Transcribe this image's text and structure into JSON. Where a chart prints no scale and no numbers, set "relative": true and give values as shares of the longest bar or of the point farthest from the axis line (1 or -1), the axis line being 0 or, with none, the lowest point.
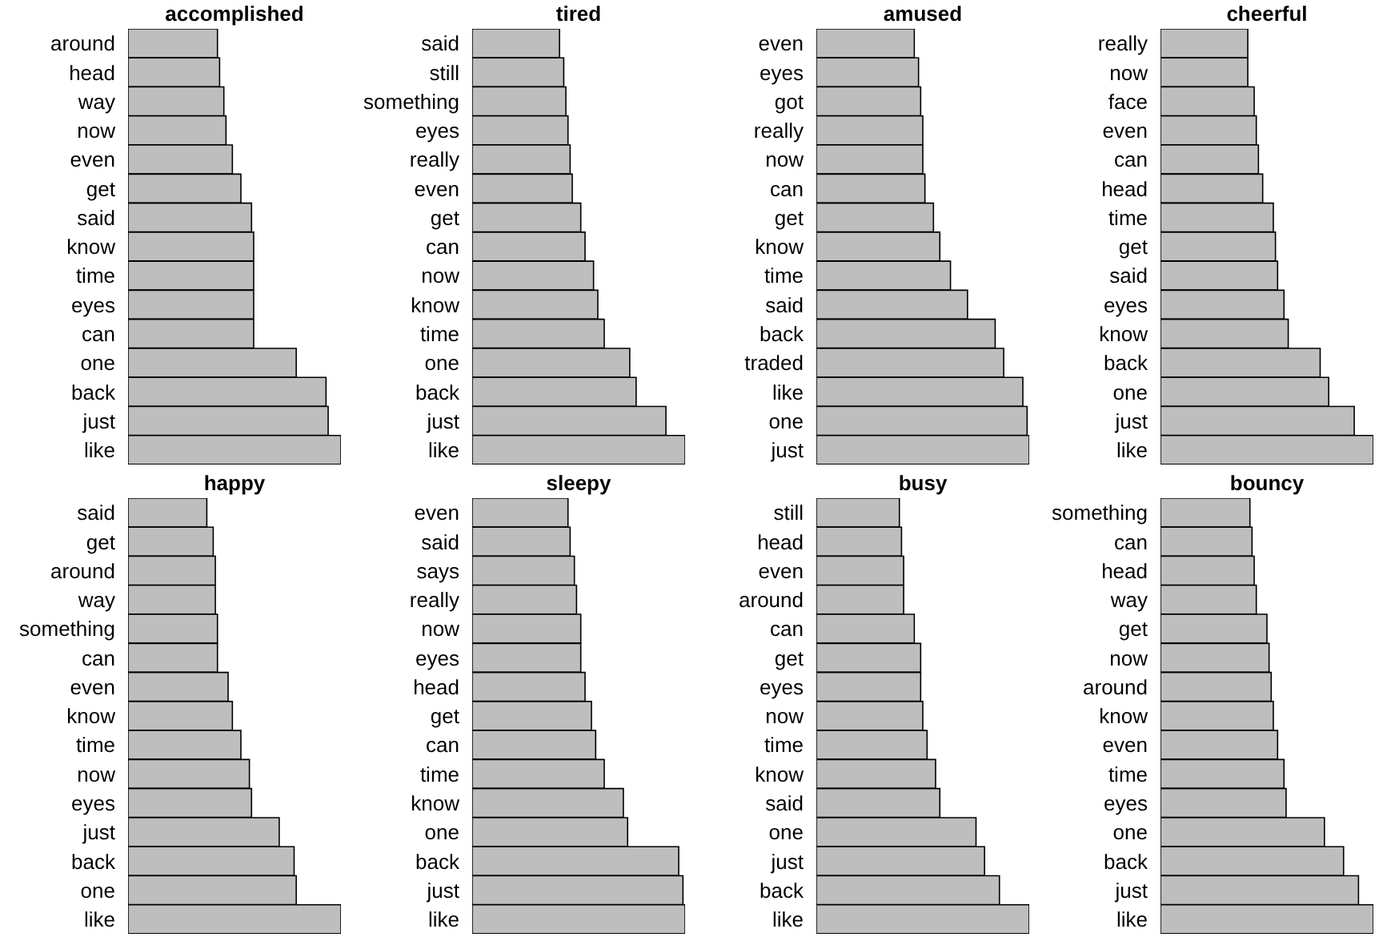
{
  "chart_data": [
    {
      "type": "bar",
      "orientation": "horizontal",
      "relative": true,
      "title": "accomplished",
      "color": "#bebebe",
      "categories": [
        "around",
        "head",
        "way",
        "now",
        "even",
        "get",
        "said",
        "know",
        "time",
        "eyes",
        "can",
        "one",
        "back",
        "just",
        "like"
      ],
      "values": [
        0.42,
        0.43,
        0.45,
        0.46,
        0.49,
        0.53,
        0.58,
        0.59,
        0.59,
        0.59,
        0.59,
        0.79,
        0.93,
        0.94,
        1
      ]
    },
    {
      "type": "bar",
      "orientation": "horizontal",
      "relative": true,
      "title": "tired",
      "color": "#bebebe",
      "categories": [
        "said",
        "still",
        "something",
        "eyes",
        "really",
        "even",
        "get",
        "can",
        "now",
        "know",
        "time",
        "one",
        "back",
        "just",
        "like"
      ],
      "values": [
        0.41,
        0.43,
        0.44,
        0.45,
        0.46,
        0.47,
        0.51,
        0.53,
        0.57,
        0.59,
        0.62,
        0.74,
        0.77,
        0.91,
        1
      ]
    },
    {
      "type": "bar",
      "orientation": "horizontal",
      "relative": true,
      "title": "amused",
      "color": "#bebebe",
      "categories": [
        "even",
        "eyes",
        "got",
        "really",
        "now",
        "can",
        "get",
        "know",
        "time",
        "said",
        "back",
        "traded",
        "like",
        "one",
        "just"
      ],
      "values": [
        0.46,
        0.48,
        0.49,
        0.5,
        0.5,
        0.51,
        0.55,
        0.58,
        0.63,
        0.71,
        0.84,
        0.88,
        0.97,
        0.99,
        1
      ]
    },
    {
      "type": "bar",
      "orientation": "horizontal",
      "relative": true,
      "title": "cheerful",
      "color": "#bebebe",
      "categories": [
        "really",
        "now",
        "face",
        "even",
        "can",
        "head",
        "time",
        "get",
        "said",
        "eyes",
        "know",
        "back",
        "one",
        "just",
        "like"
      ],
      "values": [
        0.41,
        0.41,
        0.44,
        0.45,
        0.46,
        0.48,
        0.53,
        0.54,
        0.55,
        0.58,
        0.6,
        0.75,
        0.79,
        0.91,
        1
      ]
    },
    {
      "type": "bar",
      "orientation": "horizontal",
      "relative": true,
      "title": "happy",
      "color": "#bebebe",
      "categories": [
        "said",
        "get",
        "around",
        "way",
        "something",
        "can",
        "even",
        "know",
        "time",
        "now",
        "eyes",
        "just",
        "back",
        "one",
        "like"
      ],
      "values": [
        0.37,
        0.4,
        0.41,
        0.41,
        0.42,
        0.42,
        0.47,
        0.49,
        0.53,
        0.57,
        0.58,
        0.71,
        0.78,
        0.79,
        1
      ]
    },
    {
      "type": "bar",
      "orientation": "horizontal",
      "relative": true,
      "title": "sleepy",
      "color": "#bebebe",
      "categories": [
        "even",
        "said",
        "says",
        "really",
        "now",
        "eyes",
        "head",
        "get",
        "can",
        "time",
        "know",
        "one",
        "back",
        "just",
        "like"
      ],
      "values": [
        0.45,
        0.46,
        0.48,
        0.49,
        0.51,
        0.51,
        0.53,
        0.56,
        0.58,
        0.62,
        0.71,
        0.73,
        0.97,
        0.99,
        1
      ]
    },
    {
      "type": "bar",
      "orientation": "horizontal",
      "relative": true,
      "title": "busy",
      "color": "#bebebe",
      "categories": [
        "still",
        "head",
        "even",
        "around",
        "can",
        "get",
        "eyes",
        "now",
        "time",
        "know",
        "said",
        "one",
        "just",
        "back",
        "like"
      ],
      "values": [
        0.39,
        0.4,
        0.41,
        0.41,
        0.46,
        0.49,
        0.49,
        0.5,
        0.52,
        0.56,
        0.58,
        0.75,
        0.79,
        0.86,
        1
      ]
    },
    {
      "type": "bar",
      "orientation": "horizontal",
      "relative": true,
      "title": "bouncy",
      "color": "#bebebe",
      "categories": [
        "something",
        "can",
        "head",
        "way",
        "get",
        "now",
        "around",
        "know",
        "even",
        "time",
        "eyes",
        "one",
        "back",
        "just",
        "like"
      ],
      "values": [
        0.42,
        0.43,
        0.44,
        0.45,
        0.5,
        0.51,
        0.52,
        0.53,
        0.55,
        0.58,
        0.59,
        0.77,
        0.86,
        0.93,
        1
      ]
    }
  ]
}
